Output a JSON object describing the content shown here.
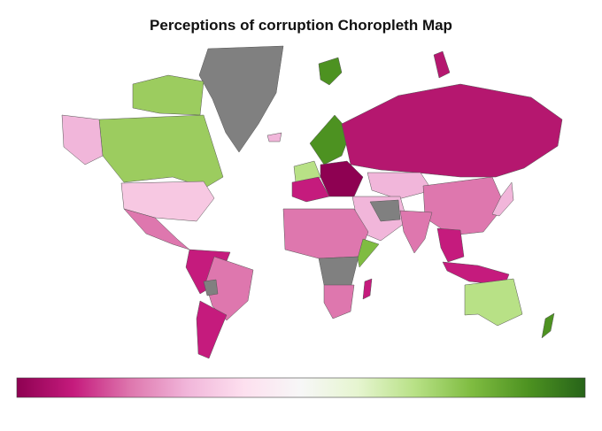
{
  "chart_data": {
    "type": "choropleth",
    "title": "Perceptions of corruption Choropleth Map",
    "colorscale": [
      "#8e0152",
      "#c51b7d",
      "#de77ae",
      "#f1b6da",
      "#fde0ef",
      "#f7f7f7",
      "#e6f5d0",
      "#b8e186",
      "#7fbc41",
      "#4d9221",
      "#276419"
    ]
  }
}
